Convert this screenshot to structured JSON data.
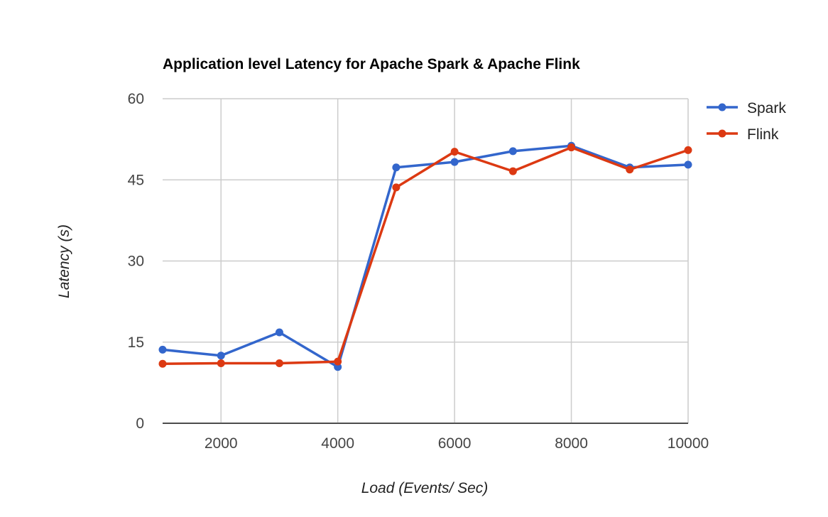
{
  "chart_data": {
    "type": "line",
    "title": "Application level Latency for Apache Spark & Apache Flink",
    "xlabel": "Load (Events/ Sec)",
    "ylabel": "Latency (s)",
    "x": [
      1000,
      2000,
      3000,
      4000,
      5000,
      6000,
      7000,
      8000,
      9000,
      10000
    ],
    "xlim": [
      1000,
      10000
    ],
    "xticks": [
      "2000",
      "4000",
      "6000",
      "8000",
      "10000"
    ],
    "xtick_values": [
      2000,
      4000,
      6000,
      8000,
      10000
    ],
    "ylim": [
      0,
      60
    ],
    "yticks": [
      "0",
      "15",
      "30",
      "45",
      "60"
    ],
    "ytick_values": [
      0,
      15,
      30,
      45,
      60
    ],
    "grid": true,
    "legend_position": "right",
    "series": [
      {
        "name": "Spark",
        "color": "#3366cc",
        "values": [
          13.6,
          12.5,
          16.8,
          10.4,
          47.3,
          48.3,
          50.3,
          51.3,
          47.3,
          47.8
        ]
      },
      {
        "name": "Flink",
        "color": "#dc3912",
        "values": [
          11.0,
          11.1,
          11.1,
          11.4,
          43.6,
          50.2,
          46.6,
          51.0,
          46.9,
          50.5
        ]
      }
    ]
  }
}
